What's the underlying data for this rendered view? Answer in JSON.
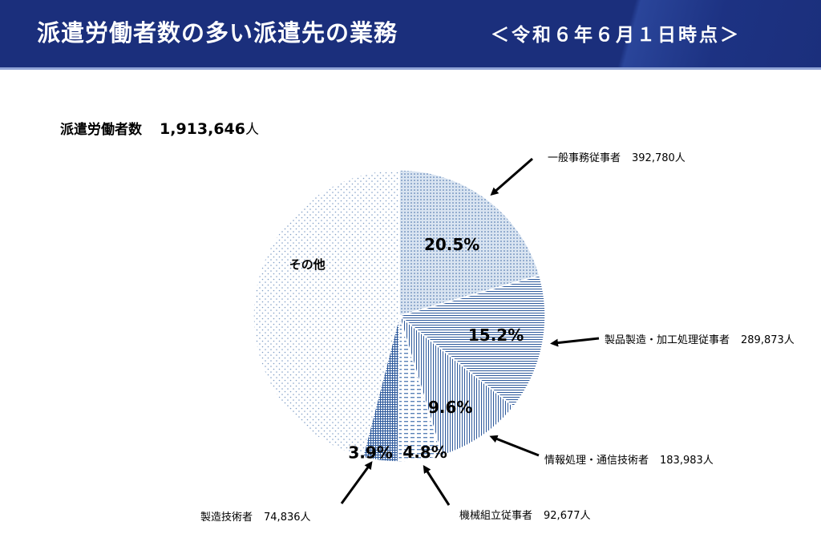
{
  "header": {
    "title": "派遣労働者数の多い派遣先の業務",
    "subtitle": "＜令和６年６月１日時点＞"
  },
  "total": {
    "label": "派遣労働者数",
    "value": "1,913,646",
    "unit": "人"
  },
  "chart_data": {
    "type": "pie",
    "total": 1913646,
    "slices": [
      {
        "name": "一般事務従事者",
        "value": 392780,
        "value_label": "392,780人",
        "percent": 20.5,
        "percent_label": "20.5%",
        "pattern": "dots-dense"
      },
      {
        "name": "製品製造・加工処理従事者",
        "value": 289873,
        "value_label": "289,873人",
        "percent": 15.2,
        "percent_label": "15.2%",
        "pattern": "horizontal"
      },
      {
        "name": "情報処理・通信技術者",
        "value": 183983,
        "value_label": "183,983人",
        "percent": 9.6,
        "percent_label": "9.6%",
        "pattern": "vertical"
      },
      {
        "name": "機械組立従事者",
        "value": 92677,
        "value_label": "92,677人",
        "percent": 4.8,
        "percent_label": "4.8%",
        "pattern": "dashed-horizontal"
      },
      {
        "name": "製造技術者",
        "value": 74836,
        "value_label": "74,836人",
        "percent": 3.9,
        "percent_label": "3.9%",
        "pattern": "grid"
      },
      {
        "name": "その他",
        "value": 879497,
        "percent": 46.0,
        "label": "その他",
        "pattern": "dots-sparse"
      }
    ],
    "colors": {
      "accent": "#2e5a9c",
      "light": "#8fb0d8",
      "header": "#1b2f7c"
    }
  }
}
